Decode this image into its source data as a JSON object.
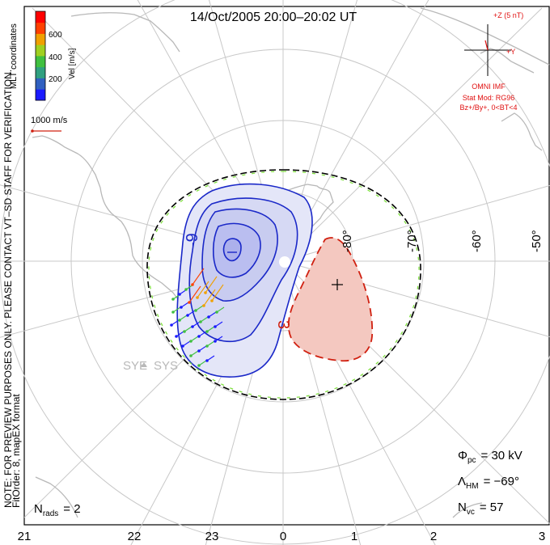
{
  "title": "14/Oct/2005 20:00–20:02 UT",
  "colorbar": {
    "ticks": [
      "600",
      "400",
      "200"
    ],
    "label": "Vel [m/s]",
    "colors": [
      "#1a1aff",
      "#3060c0",
      "#30a080",
      "#40c040",
      "#a0d020",
      "#f0a000",
      "#ff4000",
      "#ff0000"
    ]
  },
  "coord_label": "MLT coordinates",
  "vector_scale_label": "1000 m/s",
  "notice": "NOTE: FOR PREVIEW PURPOSES ONLY. PLEASE CONTACT VT–SD STAFF FOR VERIFICATION.",
  "fit_info": "FitOrder: 8, mapEX format",
  "imf": {
    "plus_z": "+Z (5 nT)",
    "plus_y": "+Y",
    "source": "OMNI IMF",
    "model": "Stat Mod: RG96",
    "condition": "Bz+/By+, 0<BT<4"
  },
  "radar_labels": [
    "SYE",
    "SYS"
  ],
  "contour_labels": {
    "negative": "-9",
    "positive": "3"
  },
  "lat_labels": [
    "-80°",
    "-70°",
    "-60°",
    "-50°"
  ],
  "mlt_labels": [
    "21",
    "22",
    "23",
    "0",
    "1",
    "2",
    "3"
  ],
  "stats": {
    "phi_pc_sym": "Φ",
    "phi_pc_sub": "pc",
    "phi_pc_val": "= 30 kV",
    "lambda_hm_sym": "Λ",
    "lambda_hm_sub": "HM",
    "lambda_hm_val": "= −69°",
    "n_vc_sym": "N",
    "n_vc_sub": "vc",
    "n_vc_val": "= 57",
    "n_rads_sym": "N",
    "n_rads_sub": "rads",
    "n_rads_val": "= 2"
  },
  "colors": {
    "negative_contour": "#1a28c8",
    "negative_fill": "#b8bcf0",
    "positive_contour": "#d02010",
    "positive_fill": "#f4c8c0",
    "boundary_dash": "#80e040",
    "grid": "#c8c8c8",
    "coast": "#b8b8b8",
    "imf_text": "#e01010"
  }
}
